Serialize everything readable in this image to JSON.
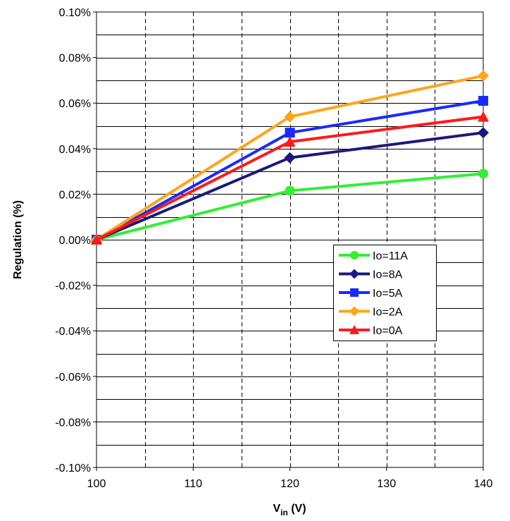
{
  "chart_data": {
    "type": "line",
    "title": "",
    "xlabel_main": "V",
    "xlabel_sub": "in",
    "xlabel_unit": " (V)",
    "ylabel": "Regulation (%)",
    "xlim": [
      100,
      140
    ],
    "ylim": [
      -0.1,
      0.1
    ],
    "x_ticks": [
      100,
      110,
      120,
      130,
      140
    ],
    "x_tick_labels": [
      "100",
      "110",
      "120",
      "130",
      "140"
    ],
    "y_ticks": [
      0.1,
      0.08,
      0.06,
      0.04,
      0.02,
      0.0,
      -0.02,
      -0.04,
      -0.06,
      -0.08,
      -0.1
    ],
    "y_tick_labels": [
      "0.10%",
      "0.08%",
      "0.06%",
      "0.04%",
      "0.02%",
      "0.00%",
      "-0.02%",
      "-0.04%",
      "-0.06%",
      "-0.08%",
      "-0.10%"
    ],
    "grid": true,
    "legend_position": "center-right",
    "x": [
      100,
      120,
      140
    ],
    "series": [
      {
        "name": "Io=11A",
        "values": [
          0.0,
          0.0215,
          0.029
        ],
        "color": "#33ee33",
        "marker": "circle"
      },
      {
        "name": "Io=8A",
        "values": [
          0.0,
          0.036,
          0.047
        ],
        "color": "#1a1a7a",
        "marker": "diamond"
      },
      {
        "name": "Io=5A",
        "values": [
          0.0,
          0.047,
          0.061
        ],
        "color": "#1a2aff",
        "marker": "square"
      },
      {
        "name": "Io=2A",
        "values": [
          0.0,
          0.054,
          0.072
        ],
        "color": "#ffa51a",
        "marker": "diamond"
      },
      {
        "name": "Io=0A",
        "values": [
          0.0,
          0.043,
          0.054
        ],
        "color": "#ff1a1a",
        "marker": "triangle"
      }
    ]
  }
}
